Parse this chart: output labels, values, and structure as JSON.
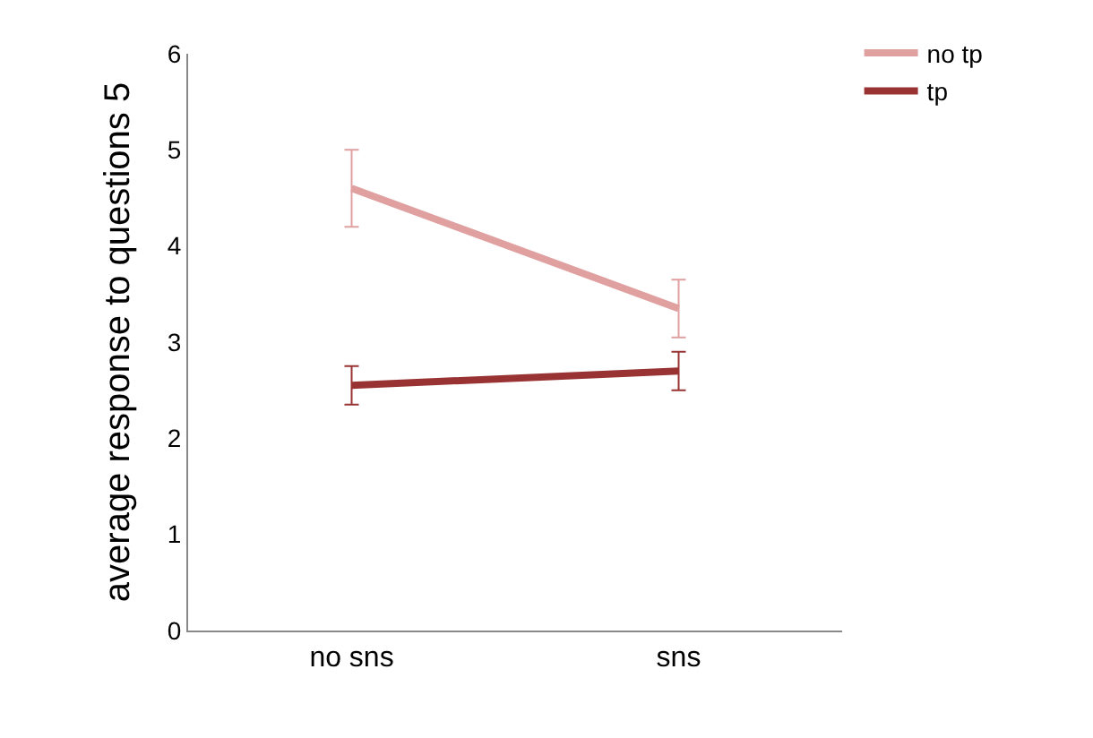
{
  "chart_data": {
    "type": "line",
    "ylabel": "average response to questions 5",
    "categories": [
      "no sns",
      "sns"
    ],
    "series": [
      {
        "name": "no tp",
        "color": "#e0a0a0",
        "values": [
          4.6,
          3.35
        ],
        "errors": [
          0.4,
          0.3
        ]
      },
      {
        "name": "tp",
        "color": "#993333",
        "values": [
          2.55,
          2.7
        ],
        "errors": [
          0.2,
          0.2
        ]
      }
    ],
    "ylim": [
      0,
      6
    ],
    "yticks": [
      0,
      1,
      2,
      3,
      4,
      5,
      6
    ],
    "legend": "top right",
    "marker": "none",
    "line_style": "solid"
  }
}
